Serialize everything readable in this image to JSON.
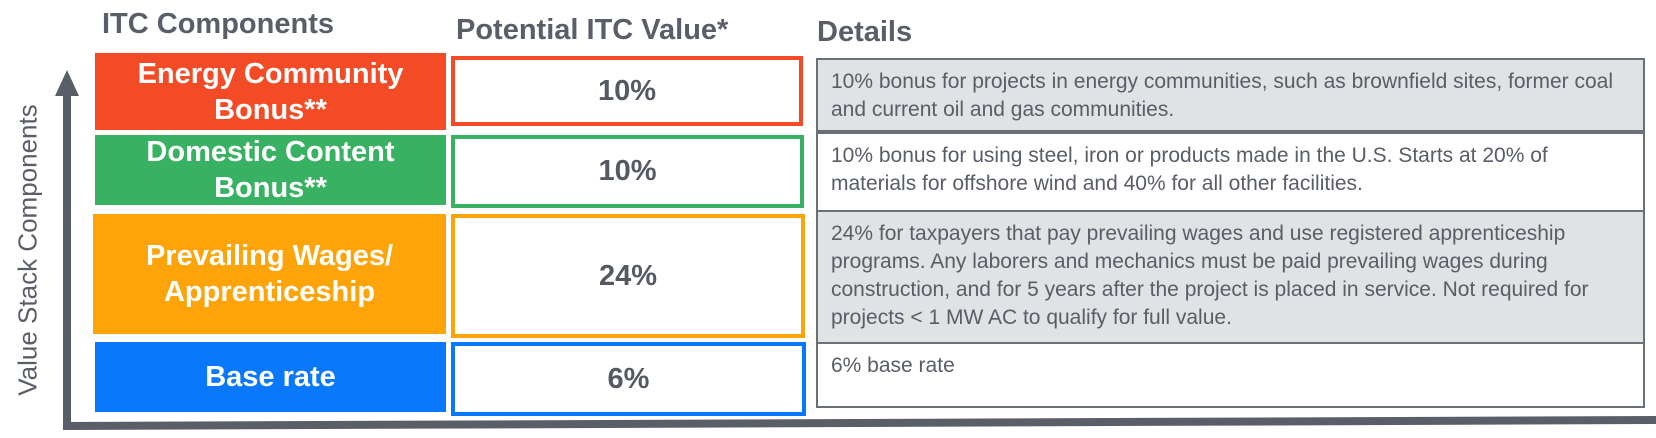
{
  "headers": {
    "components": "ITC Components",
    "value": "Potential ITC Value*",
    "details": "Details"
  },
  "axis": {
    "y_label": "Value Stack Components"
  },
  "colors": {
    "energy_community": "#f44b27",
    "domestic_content": "#39b162",
    "prevailing_wages": "#fca40a",
    "base_rate": "#0a78fb",
    "detail_shade": "#e1e2e4",
    "axis": "#5a5e68"
  },
  "rows": [
    {
      "component_line1": "Energy Community",
      "component_line2": "Bonus**",
      "value": "10%",
      "details": "10% bonus for projects in energy communities, such as brownfield sites, former coal and current oil and gas communities."
    },
    {
      "component_line1": "Domestic Content",
      "component_line2": "Bonus**",
      "value": "10%",
      "details": "10% bonus for using steel, iron or products made in the U.S. Starts at 20% of materials for offshore wind and 40% for all other facilities."
    },
    {
      "component_line1": "Prevailing Wages/",
      "component_line2": "Apprenticeship",
      "value": "24%",
      "details": "24% for taxpayers that pay prevailing wages and use registered apprenticeship programs. Any laborers and mechanics must be paid prevailing wages during construction, and for 5 years after the project is placed in service. Not required for projects < 1 MW AC to qualify for full value."
    },
    {
      "component_line1": "Base rate",
      "component_line2": "",
      "value": "6%",
      "details": "6% base rate"
    }
  ]
}
